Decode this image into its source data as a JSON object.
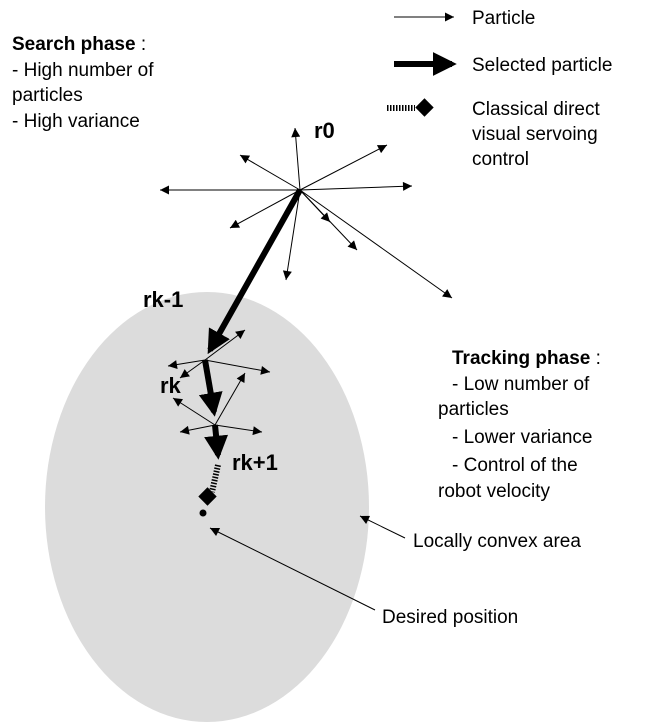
{
  "legend": [
    {
      "lines": [
        "Particle"
      ]
    },
    {
      "lines": [
        "Selected particle"
      ]
    },
    {
      "lines": [
        "Classical direct",
        "visual servoing",
        "control"
      ]
    }
  ],
  "search_phase": {
    "title": "Search phase",
    "title_suffix": ":",
    "lines": [
      "- High number of",
      "particles",
      "- High variance"
    ]
  },
  "tracking_phase": {
    "title": "Tracking phase",
    "title_suffix": ":",
    "lines": [
      "- Low number of",
      "particles",
      "- Lower variance",
      "- Control of the",
      "robot velocity"
    ]
  },
  "nodes": [
    {
      "label": "r0"
    },
    {
      "label": "rk-1"
    },
    {
      "label": "rk"
    },
    {
      "label": "rk+1"
    }
  ],
  "annotations": [
    {
      "label": "Locally convex area"
    },
    {
      "label": "Desired position"
    }
  ]
}
